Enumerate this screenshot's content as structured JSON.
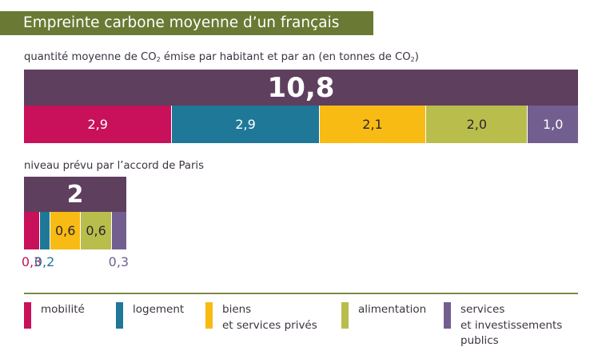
{
  "title": "Empreinte carbone moyenne d’un français",
  "subtitle": {
    "part1": "quantité moyenne de CO",
    "sub1": "2",
    "part2": " émise par habitant et par an (en tonnes de CO",
    "sub2": "2",
    "part3": ")"
  },
  "paris_label": "niveau prévu par l’accord de Paris",
  "legend": [
    {
      "key": "mobilite",
      "lines": [
        "mobilité"
      ]
    },
    {
      "key": "logement",
      "lines": [
        "logement"
      ]
    },
    {
      "key": "biens",
      "lines": [
        "biens",
        "et services privés"
      ]
    },
    {
      "key": "alimentation",
      "lines": [
        "alimentation"
      ]
    },
    {
      "key": "services",
      "lines": [
        "services",
        "et investissements",
        "publics"
      ]
    }
  ],
  "colors": {
    "mobilite": "#c8115a",
    "logement": "#1f7898",
    "biens": "#f8bb14",
    "alimentation": "#b9bd4c",
    "services": "#725f8f",
    "total": "#5e3f5e",
    "title_band": "#6a7a34"
  },
  "chart_data": [
    {
      "type": "bar",
      "label": "quantité moyenne de CO2 émise par habitant et par an (en tonnes de CO2)",
      "total": 10.8,
      "total_label": "10,8",
      "categories": [
        "mobilité",
        "logement",
        "biens et services privés",
        "alimentation",
        "services et investissements publics"
      ],
      "values": [
        2.9,
        2.9,
        2.1,
        2.0,
        1.0
      ],
      "value_labels": [
        "2,9",
        "2,9",
        "2,1",
        "2,0",
        "1,0"
      ]
    },
    {
      "type": "bar",
      "label": "niveau prévu par l’accord de Paris",
      "total": 2,
      "total_label": "2",
      "categories": [
        "mobilité",
        "logement",
        "biens et services privés",
        "alimentation",
        "services et investissements publics"
      ],
      "values": [
        0.3,
        0.2,
        0.6,
        0.6,
        0.3
      ],
      "value_labels": [
        "0,3",
        "0,2",
        "0,6",
        "0,6",
        "0,3"
      ]
    }
  ]
}
